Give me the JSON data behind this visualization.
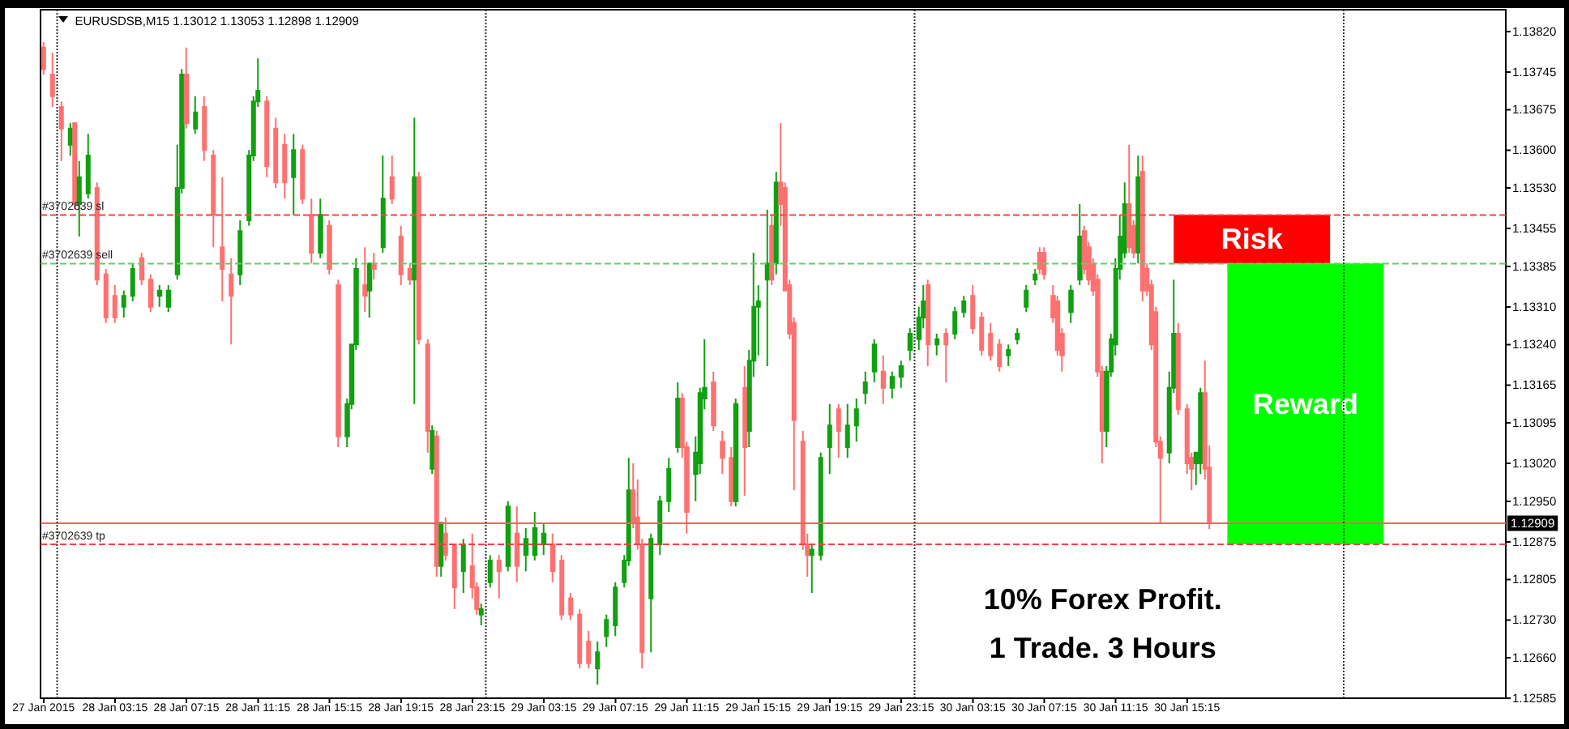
{
  "chart_data": {
    "type": "candlestick",
    "title": "EURUSDSB,M15 1.13012 1.13053 1.12898 1.12909",
    "x": [
      "2015-01-27T23:15",
      "2015-01-27T23:45",
      "2015-01-28T00:15",
      "2015-01-28T00:45",
      "2015-01-28T01:00",
      "2015-01-28T01:15",
      "2015-01-28T01:45",
      "2015-01-28T02:15",
      "2015-01-28T02:45",
      "2015-01-28T03:15",
      "2015-01-28T03:45",
      "2015-01-28T04:15",
      "2015-01-28T04:45",
      "2015-01-28T05:15",
      "2015-01-28T05:45",
      "2015-01-28T06:15",
      "2015-01-28T06:45",
      "2015-01-28T07:00",
      "2015-01-28T07:15",
      "2015-01-28T07:45",
      "2015-01-28T08:15",
      "2015-01-28T08:45",
      "2015-01-28T09:15",
      "2015-01-28T09:45",
      "2015-01-28T10:15",
      "2015-01-28T10:45",
      "2015-01-28T11:00",
      "2015-01-28T11:15",
      "2015-01-28T11:45",
      "2015-01-28T12:15",
      "2015-01-28T12:45",
      "2015-01-28T13:15",
      "2015-01-28T13:45",
      "2015-01-28T14:15",
      "2015-01-28T14:45",
      "2015-01-28T15:15",
      "2015-01-28T15:45",
      "2015-01-28T16:15",
      "2015-01-28T16:30",
      "2015-01-28T16:45",
      "2015-01-28T17:15",
      "2015-01-28T17:30",
      "2015-01-28T17:45",
      "2015-01-28T18:15",
      "2015-01-28T18:45",
      "2015-01-28T19:15",
      "2015-01-28T19:45",
      "2015-01-28T20:00",
      "2015-01-28T20:15",
      "2015-01-28T20:45",
      "2015-01-28T21:00",
      "2015-01-28T21:15",
      "2015-01-28T21:30",
      "2015-01-28T21:45",
      "2015-01-28T22:15",
      "2015-01-28T22:45",
      "2015-01-28T23:15",
      "2015-01-28T23:30",
      "2015-01-28T23:45",
      "2015-01-29T00:15",
      "2015-01-29T00:45",
      "2015-01-29T01:15",
      "2015-01-29T01:45",
      "2015-01-29T02:15",
      "2015-01-29T02:45",
      "2015-01-29T03:15",
      "2015-01-29T03:45",
      "2015-01-29T04:15",
      "2015-01-29T04:45",
      "2015-01-29T05:15",
      "2015-01-29T05:45",
      "2015-01-29T06:15",
      "2015-01-29T06:45",
      "2015-01-29T07:15",
      "2015-01-29T07:45",
      "2015-01-29T08:00",
      "2015-01-29T08:15",
      "2015-01-29T08:30",
      "2015-01-29T08:45",
      "2015-01-29T09:15",
      "2015-01-29T09:45",
      "2015-01-29T10:15",
      "2015-01-29T10:45",
      "2015-01-29T11:00",
      "2015-01-29T11:15",
      "2015-01-29T11:45",
      "2015-01-29T12:00",
      "2015-01-29T12:15",
      "2015-01-29T12:45",
      "2015-01-29T13:15",
      "2015-01-29T13:45",
      "2015-01-29T14:00",
      "2015-01-29T14:30",
      "2015-01-29T14:45",
      "2015-01-29T15:00",
      "2015-01-29T15:15",
      "2015-01-29T15:45",
      "2015-01-29T16:00",
      "2015-01-29T16:15",
      "2015-01-29T16:30",
      "2015-01-29T16:45",
      "2015-01-29T17:00",
      "2015-01-29T17:15",
      "2015-01-29T17:45",
      "2015-01-29T18:00",
      "2015-01-29T18:15",
      "2015-01-29T18:45",
      "2015-01-29T19:15",
      "2015-01-29T19:45",
      "2015-01-29T20:15",
      "2015-01-29T20:45",
      "2015-01-29T21:15",
      "2015-01-29T21:45",
      "2015-01-29T22:15",
      "2015-01-29T22:45",
      "2015-01-29T23:15",
      "2015-01-29T23:45",
      "2015-01-30T00:15",
      "2015-01-30T00:30",
      "2015-01-30T00:45",
      "2015-01-30T01:15",
      "2015-01-30T01:45",
      "2015-01-30T02:15",
      "2015-01-30T02:45",
      "2015-01-30T03:15",
      "2015-01-30T03:45",
      "2015-01-30T04:15",
      "2015-01-30T04:45",
      "2015-01-30T05:15",
      "2015-01-30T05:45",
      "2015-01-30T06:15",
      "2015-01-30T06:45",
      "2015-01-30T07:00",
      "2015-01-30T07:15",
      "2015-01-30T07:45",
      "2015-01-30T08:00",
      "2015-01-30T08:15",
      "2015-01-30T08:45",
      "2015-01-30T09:15",
      "2015-01-30T09:30",
      "2015-01-30T09:45",
      "2015-01-30T10:00",
      "2015-01-30T10:15",
      "2015-01-30T10:30",
      "2015-01-30T10:45",
      "2015-01-30T11:00",
      "2015-01-30T11:15",
      "2015-01-30T11:30",
      "2015-01-30T11:45",
      "2015-01-30T12:00",
      "2015-01-30T12:15",
      "2015-01-30T12:30",
      "2015-01-30T12:45",
      "2015-01-30T13:00",
      "2015-01-30T13:15",
      "2015-01-30T13:30",
      "2015-01-30T13:45",
      "2015-01-30T14:15",
      "2015-01-30T14:30",
      "2015-01-30T14:45",
      "2015-01-30T15:15",
      "2015-01-30T15:30",
      "2015-01-30T15:45",
      "2015-01-30T16:00",
      "2015-01-30T16:15",
      "2015-01-30T16:30"
    ],
    "ohlc": [
      [
        1.1379,
        1.138,
        1.1374,
        1.1375
      ],
      [
        1.1374,
        1.1378,
        1.1368,
        1.137
      ],
      [
        1.1368,
        1.1369,
        1.1358,
        1.1364
      ],
      [
        1.1361,
        1.1365,
        1.1359,
        1.1364
      ],
      [
        1.1365,
        1.1365,
        1.1349,
        1.135
      ],
      [
        1.135,
        1.1358,
        1.1344,
        1.1355
      ],
      [
        1.1352,
        1.1363,
        1.1351,
        1.1359
      ],
      [
        1.1353,
        1.1354,
        1.1335,
        1.1336
      ],
      [
        1.1337,
        1.1338,
        1.1328,
        1.1329
      ],
      [
        1.1333,
        1.1335,
        1.1328,
        1.1329
      ],
      [
        1.1331,
        1.1334,
        1.1329,
        1.1333
      ],
      [
        1.1333,
        1.1339,
        1.1332,
        1.1338
      ],
      [
        1.134,
        1.1341,
        1.1335,
        1.1336
      ],
      [
        1.1336,
        1.1337,
        1.133,
        1.1331
      ],
      [
        1.1333,
        1.1335,
        1.1331,
        1.1334
      ],
      [
        1.1331,
        1.1335,
        1.133,
        1.1334
      ],
      [
        1.1337,
        1.1361,
        1.1336,
        1.1353
      ],
      [
        1.1353,
        1.1375,
        1.1352,
        1.1374
      ],
      [
        1.1374,
        1.1379,
        1.1364,
        1.1365
      ],
      [
        1.1364,
        1.137,
        1.1363,
        1.1367
      ],
      [
        1.1368,
        1.137,
        1.1358,
        1.136
      ],
      [
        1.1359,
        1.136,
        1.1342,
        1.1348
      ],
      [
        1.1342,
        1.1355,
        1.1332,
        1.1338
      ],
      [
        1.1337,
        1.134,
        1.1324,
        1.1333
      ],
      [
        1.1337,
        1.1347,
        1.1335,
        1.1345
      ],
      [
        1.1347,
        1.136,
        1.1346,
        1.1359
      ],
      [
        1.1359,
        1.137,
        1.1358,
        1.1369
      ],
      [
        1.1369,
        1.1377,
        1.1368,
        1.1371
      ],
      [
        1.1369,
        1.137,
        1.1355,
        1.1357
      ],
      [
        1.1364,
        1.1366,
        1.1353,
        1.1354
      ],
      [
        1.1361,
        1.1363,
        1.1351,
        1.1354
      ],
      [
        1.1355,
        1.1363,
        1.1348,
        1.136
      ],
      [
        1.136,
        1.1361,
        1.135,
        1.1351
      ],
      [
        1.1348,
        1.1351,
        1.1339,
        1.1341
      ],
      [
        1.1341,
        1.1351,
        1.134,
        1.1348
      ],
      [
        1.1346,
        1.1347,
        1.1337,
        1.1338
      ],
      [
        1.1335,
        1.1336,
        1.1305,
        1.1307
      ],
      [
        1.1307,
        1.1314,
        1.1305,
        1.1313
      ],
      [
        1.1313,
        1.1324,
        1.1312,
        1.1324
      ],
      [
        1.1324,
        1.134,
        1.1323,
        1.1338
      ],
      [
        1.1335,
        1.1342,
        1.133,
        1.1333
      ],
      [
        1.1334,
        1.1339,
        1.1329,
        1.1339
      ],
      [
        1.1339,
        1.1341,
        1.1336,
        1.1338
      ],
      [
        1.1342,
        1.1359,
        1.1341,
        1.1351
      ],
      [
        1.1355,
        1.1359,
        1.135,
        1.1351
      ],
      [
        1.1344,
        1.1346,
        1.1335,
        1.1337
      ],
      [
        1.1338,
        1.1339,
        1.1335,
        1.1336
      ],
      [
        1.1336,
        1.1366,
        1.1313,
        1.1355
      ],
      [
        1.1355,
        1.1356,
        1.1324,
        1.1325
      ],
      [
        1.1324,
        1.1325,
        1.1304,
        1.1308
      ],
      [
        1.1301,
        1.1309,
        1.13,
        1.1308
      ],
      [
        1.1307,
        1.1308,
        1.1281,
        1.1283
      ],
      [
        1.1283,
        1.1291,
        1.1281,
        1.1291
      ],
      [
        1.1289,
        1.1292,
        1.1284,
        1.1285
      ],
      [
        1.1287,
        1.1287,
        1.1275,
        1.1279
      ],
      [
        1.1282,
        1.1288,
        1.1278,
        1.1287
      ],
      [
        1.1283,
        1.1289,
        1.1277,
        1.1279
      ],
      [
        1.1279,
        1.128,
        1.1274,
        1.1275
      ],
      [
        1.1274,
        1.1276,
        1.1272,
        1.1275
      ],
      [
        1.128,
        1.1285,
        1.1279,
        1.1284
      ],
      [
        1.1284,
        1.1285,
        1.1277,
        1.1282
      ],
      [
        1.1283,
        1.1295,
        1.1282,
        1.1294
      ],
      [
        1.1289,
        1.1294,
        1.128,
        1.1283
      ],
      [
        1.1285,
        1.129,
        1.1282,
        1.1288
      ],
      [
        1.1285,
        1.1293,
        1.1284,
        1.129
      ],
      [
        1.1287,
        1.1291,
        1.1285,
        1.1289
      ],
      [
        1.1287,
        1.1289,
        1.128,
        1.1282
      ],
      [
        1.1284,
        1.1285,
        1.1273,
        1.1274
      ],
      [
        1.1277,
        1.1278,
        1.1273,
        1.1274
      ],
      [
        1.1274,
        1.1275,
        1.1264,
        1.1265
      ],
      [
        1.1269,
        1.1271,
        1.1264,
        1.1265
      ],
      [
        1.1264,
        1.1269,
        1.1261,
        1.1267
      ],
      [
        1.127,
        1.1274,
        1.1268,
        1.1273
      ],
      [
        1.1272,
        1.128,
        1.127,
        1.1279
      ],
      [
        1.128,
        1.1285,
        1.1279,
        1.1284
      ],
      [
        1.1284,
        1.1303,
        1.1283,
        1.1297
      ],
      [
        1.1297,
        1.1302,
        1.129,
        1.1291
      ],
      [
        1.1292,
        1.1299,
        1.1286,
        1.1287
      ],
      [
        1.1287,
        1.1288,
        1.1264,
        1.1267
      ],
      [
        1.1277,
        1.1289,
        1.1267,
        1.1288
      ],
      [
        1.1287,
        1.1296,
        1.1285,
        1.1295
      ],
      [
        1.1295,
        1.1303,
        1.1293,
        1.1301
      ],
      [
        1.1305,
        1.1317,
        1.1304,
        1.1314
      ],
      [
        1.1314,
        1.1315,
        1.1303,
        1.1305
      ],
      [
        1.1305,
        1.1306,
        1.1289,
        1.1293
      ],
      [
        1.13,
        1.1307,
        1.1295,
        1.1304
      ],
      [
        1.1302,
        1.1316,
        1.13,
        1.1315
      ],
      [
        1.1314,
        1.1325,
        1.1312,
        1.1316
      ],
      [
        1.1317,
        1.1319,
        1.1308,
        1.1309
      ],
      [
        1.1306,
        1.1308,
        1.13,
        1.1303
      ],
      [
        1.1303,
        1.1305,
        1.1294,
        1.1295
      ],
      [
        1.1295,
        1.1314,
        1.1294,
        1.1313
      ],
      [
        1.1316,
        1.132,
        1.1296,
        1.1305
      ],
      [
        1.1308,
        1.1323,
        1.1305,
        1.1321
      ],
      [
        1.1321,
        1.1341,
        1.1318,
        1.1331
      ],
      [
        1.1331,
        1.1335,
        1.1322,
        1.1332
      ],
      [
        1.1336,
        1.1349,
        1.132,
        1.1339
      ],
      [
        1.1346,
        1.1348,
        1.1335,
        1.1336
      ],
      [
        1.1339,
        1.1356,
        1.1337,
        1.1354
      ],
      [
        1.1354,
        1.1365,
        1.1346,
        1.135
      ],
      [
        1.1353,
        1.1354,
        1.1334,
        1.1334
      ],
      [
        1.1335,
        1.1336,
        1.1325,
        1.1326
      ],
      [
        1.1328,
        1.1329,
        1.1297,
        1.131
      ],
      [
        1.1306,
        1.1308,
        1.1286,
        1.1287
      ],
      [
        1.1287,
        1.1289,
        1.1281,
        1.1285
      ],
      [
        1.1285,
        1.1287,
        1.1278,
        1.1286
      ],
      [
        1.1285,
        1.1304,
        1.1284,
        1.1303
      ],
      [
        1.1305,
        1.1313,
        1.13,
        1.1309
      ],
      [
        1.1312,
        1.1313,
        1.1303,
        1.1308
      ],
      [
        1.1305,
        1.1313,
        1.1303,
        1.1309
      ],
      [
        1.1309,
        1.1314,
        1.1306,
        1.1312
      ],
      [
        1.1315,
        1.1319,
        1.1313,
        1.1317
      ],
      [
        1.1319,
        1.1325,
        1.1317,
        1.1324
      ],
      [
        1.1319,
        1.1322,
        1.1313,
        1.1316
      ],
      [
        1.1316,
        1.1319,
        1.1314,
        1.1318
      ],
      [
        1.1318,
        1.1321,
        1.1316,
        1.132
      ],
      [
        1.1323,
        1.1327,
        1.1321,
        1.1326
      ],
      [
        1.1325,
        1.1331,
        1.1323,
        1.1329
      ],
      [
        1.1329,
        1.1335,
        1.1327,
        1.1332
      ],
      [
        1.1335,
        1.1336,
        1.132,
        1.1324
      ],
      [
        1.1324,
        1.1326,
        1.1322,
        1.1325
      ],
      [
        1.1326,
        1.1327,
        1.1317,
        1.1324
      ],
      [
        1.1326,
        1.1331,
        1.1325,
        1.133
      ],
      [
        1.133,
        1.1333,
        1.1329,
        1.1332
      ],
      [
        1.1333,
        1.1335,
        1.1326,
        1.1327
      ],
      [
        1.1329,
        1.133,
        1.1322,
        1.1323
      ],
      [
        1.1326,
        1.1328,
        1.1321,
        1.1322
      ],
      [
        1.1324,
        1.1325,
        1.1319,
        1.132
      ],
      [
        1.1322,
        1.1324,
        1.132,
        1.1323
      ],
      [
        1.1325,
        1.1327,
        1.1324,
        1.1326
      ],
      [
        1.1331,
        1.1335,
        1.133,
        1.1334
      ],
      [
        1.1336,
        1.1338,
        1.1335,
        1.1337
      ],
      [
        1.1341,
        1.1342,
        1.1337,
        1.1338
      ],
      [
        1.1341,
        1.1342,
        1.1336,
        1.1337
      ],
      [
        1.1333,
        1.1335,
        1.1328,
        1.1329
      ],
      [
        1.1332,
        1.1333,
        1.1322,
        1.1323
      ],
      [
        1.1326,
        1.1327,
        1.1319,
        1.1322
      ],
      [
        1.133,
        1.1335,
        1.1328,
        1.1334
      ],
      [
        1.1336,
        1.135,
        1.1335,
        1.1344
      ],
      [
        1.1345,
        1.1346,
        1.1337,
        1.1338
      ],
      [
        1.1342,
        1.1343,
        1.1335,
        1.1336
      ],
      [
        1.1339,
        1.134,
        1.1333,
        1.1334
      ],
      [
        1.1336,
        1.1337,
        1.1318,
        1.1319
      ],
      [
        1.1319,
        1.132,
        1.1302,
        1.1308
      ],
      [
        1.1308,
        1.132,
        1.1305,
        1.1319
      ],
      [
        1.1319,
        1.1326,
        1.1318,
        1.1325
      ],
      [
        1.1324,
        1.134,
        1.1322,
        1.1338
      ],
      [
        1.1338,
        1.1348,
        1.1336,
        1.1344
      ],
      [
        1.1341,
        1.1354,
        1.134,
        1.135
      ],
      [
        1.135,
        1.1361,
        1.1341,
        1.1342
      ],
      [
        1.1346,
        1.1347,
        1.134,
        1.1341
      ],
      [
        1.1341,
        1.1359,
        1.1339,
        1.1355
      ],
      [
        1.1356,
        1.1359,
        1.1332,
        1.1334
      ],
      [
        1.1338,
        1.1339,
        1.1333,
        1.1334
      ],
      [
        1.1335,
        1.1336,
        1.1323,
        1.1324
      ],
      [
        1.133,
        1.1331,
        1.1305,
        1.1306
      ],
      [
        1.1306,
        1.1307,
        1.1291,
        1.1303
      ],
      [
        1.1304,
        1.1319,
        1.1302,
        1.1316
      ],
      [
        1.1316,
        1.1336,
        1.1315,
        1.1326
      ],
      [
        1.1326,
        1.1328,
        1.1311,
        1.1312
      ],
      [
        1.1312,
        1.1313,
        1.13,
        1.1302
      ],
      [
        1.1303,
        1.1304,
        1.1297,
        1.1301
      ],
      [
        1.1302,
        1.1304,
        1.1298,
        1.1304
      ],
      [
        1.1302,
        1.1316,
        1.13,
        1.1315
      ],
      [
        1.1315,
        1.1321,
        1.1299,
        1.1301
      ],
      [
        1.13012,
        1.13053,
        1.12898,
        1.12909
      ]
    ],
    "colors": [
      "#ff7070",
      "#ff7070",
      "#ff7070",
      "#10a010",
      "#ff7070",
      "#10a010",
      "#10a010",
      "#ff7070",
      "#ff7070",
      "#ff7070",
      "#10a010",
      "#10a010",
      "#ff7070",
      "#ff7070",
      "#10a010",
      "#10a010",
      "#10a010",
      "#10a010",
      "#ff7070",
      "#10a010",
      "#ff7070",
      "#ff7070",
      "#ff7070",
      "#ff7070",
      "#10a010",
      "#10a010",
      "#10a010",
      "#10a010",
      "#ff7070",
      "#ff7070",
      "#ff7070",
      "#10a010",
      "#ff7070",
      "#ff7070",
      "#10a010",
      "#ff7070",
      "#ff7070",
      "#10a010",
      "#10a010",
      "#10a010",
      "#ff7070",
      "#10a010",
      "#ff7070",
      "#10a010",
      "#ff7070",
      "#ff7070",
      "#ff7070",
      "#10a010",
      "#ff7070",
      "#ff7070",
      "#10a010",
      "#ff7070",
      "#10a010",
      "#ff7070",
      "#ff7070",
      "#10a010",
      "#ff7070",
      "#ff7070",
      "#10a010",
      "#10a010",
      "#ff7070",
      "#10a010",
      "#ff7070",
      "#10a010",
      "#10a010",
      "#10a010",
      "#ff7070",
      "#ff7070",
      "#ff7070",
      "#ff7070",
      "#ff7070",
      "#10a010",
      "#10a010",
      "#10a010",
      "#10a010",
      "#10a010",
      "#ff7070",
      "#ff7070",
      "#ff7070",
      "#10a010",
      "#10a010",
      "#10a010",
      "#10a010",
      "#ff7070",
      "#ff7070",
      "#10a010",
      "#10a010",
      "#10a010",
      "#ff7070",
      "#ff7070",
      "#ff7070",
      "#10a010",
      "#ff7070",
      "#10a010",
      "#10a010",
      "#10a010",
      "#10a010",
      "#ff7070",
      "#10a010",
      "#ff7070",
      "#ff7070",
      "#ff7070",
      "#ff7070",
      "#ff7070",
      "#ff7070",
      "#10a010",
      "#10a010",
      "#10a010",
      "#ff7070",
      "#10a010",
      "#10a010",
      "#10a010",
      "#10a010",
      "#ff7070",
      "#10a010",
      "#10a010",
      "#10a010",
      "#10a010",
      "#10a010",
      "#ff7070",
      "#10a010",
      "#ff7070",
      "#10a010",
      "#10a010",
      "#ff7070",
      "#ff7070",
      "#ff7070",
      "#ff7070",
      "#10a010",
      "#10a010",
      "#10a010",
      "#10a010",
      "#ff7070",
      "#ff7070",
      "#ff7070",
      "#ff7070",
      "#ff7070",
      "#10a010",
      "#10a010",
      "#ff7070",
      "#ff7070",
      "#ff7070",
      "#ff7070",
      "#ff7070",
      "#10a010",
      "#10a010",
      "#10a010",
      "#10a010",
      "#10a010",
      "#ff7070",
      "#ff7070",
      "#10a010",
      "#ff7070",
      "#ff7070",
      "#ff7070",
      "#ff7070",
      "#ff7070",
      "#10a010",
      "#10a010",
      "#ff7070",
      "#ff7070",
      "#ff7070",
      "#10a010",
      "#10a010",
      "#ff7070",
      "#ff7070"
    ],
    "xlim": [
      "2015-01-27T23:05",
      "2015-01-31T09:05"
    ],
    "xticks": [
      {
        "value": "2015-01-27T23:15",
        "label": "27 Jan 2015"
      },
      {
        "value": "2015-01-28T03:15",
        "label": "28 Jan 03:15"
      },
      {
        "value": "2015-01-28T07:15",
        "label": "28 Jan 07:15"
      },
      {
        "value": "2015-01-28T11:15",
        "label": "28 Jan 11:15"
      },
      {
        "value": "2015-01-28T15:15",
        "label": "28 Jan 15:15"
      },
      {
        "value": "2015-01-28T19:15",
        "label": "28 Jan 19:15"
      },
      {
        "value": "2015-01-28T23:15",
        "label": "28 Jan 23:15"
      },
      {
        "value": "2015-01-29T03:15",
        "label": "29 Jan 03:15"
      },
      {
        "value": "2015-01-29T07:15",
        "label": "29 Jan 07:15"
      },
      {
        "value": "2015-01-29T11:15",
        "label": "29 Jan 11:15"
      },
      {
        "value": "2015-01-29T15:15",
        "label": "29 Jan 15:15"
      },
      {
        "value": "2015-01-29T19:15",
        "label": "29 Jan 19:15"
      },
      {
        "value": "2015-01-29T23:15",
        "label": "29 Jan 23:15"
      },
      {
        "value": "2015-01-30T03:15",
        "label": "30 Jan 03:15"
      },
      {
        "value": "2015-01-30T07:15",
        "label": "30 Jan 07:15"
      },
      {
        "value": "2015-01-30T11:15",
        "label": "30 Jan 11:15"
      },
      {
        "value": "2015-01-30T15:15",
        "label": "30 Jan 15:15"
      }
    ],
    "ylim": [
      1.12585,
      1.1386
    ],
    "yticks": [
      {
        "value": 1.1382,
        "label": "1.13820"
      },
      1.13745,
      1.13675,
      {
        "value": 1.136,
        "label": "1.13600"
      },
      {
        "value": 1.1353,
        "label": "1.13530"
      },
      1.13455,
      1.13385,
      {
        "value": 1.1331,
        "label": "1.13310"
      },
      {
        "value": 1.1324,
        "label": "1.13240"
      },
      1.13165,
      1.13095,
      {
        "value": 1.1302,
        "label": "1.13020"
      },
      {
        "value": 1.1295,
        "label": "1.12950"
      },
      1.12875,
      1.12805,
      {
        "value": 1.1273,
        "label": "1.12730"
      },
      {
        "value": 1.1266,
        "label": "1.12660"
      },
      1.12585
    ],
    "ref_lines": [
      {
        "axis": "y",
        "value": 1.1348,
        "label": "#3702639 sl",
        "color": "#ff4040",
        "line_style": "dashed"
      },
      {
        "axis": "y",
        "value": 1.1339,
        "label": "#3702639 sell",
        "color": "#66cc66",
        "line_style": "dashed"
      },
      {
        "axis": "y",
        "value": 1.1287,
        "label": "#3702639 tp",
        "color": "#ff4040",
        "line_style": "dashed"
      },
      {
        "axis": "y",
        "value": 1.12909,
        "label": "1.12909",
        "color": "#ff6060",
        "line_style": "solid"
      },
      {
        "axis": "x",
        "value": "2015-01-28T00:00",
        "color": "#333333",
        "line_style": "dotted"
      },
      {
        "axis": "x",
        "value": "2015-01-29T00:00",
        "color": "#333333",
        "line_style": "dotted"
      },
      {
        "axis": "x",
        "value": "2015-01-30T00:00",
        "color": "#333333",
        "line_style": "dotted"
      },
      {
        "axis": "x",
        "value": "2015-01-31T00:00",
        "color": "#333333",
        "line_style": "dotted"
      }
    ],
    "bands": [
      {
        "axis": "y",
        "from": 1.1339,
        "to": 1.1348,
        "label": "Risk",
        "color": "#ff0000"
      },
      {
        "axis": "y",
        "from": 1.1287,
        "to": 1.1339,
        "label": "Reward",
        "color": "#00ff00"
      }
    ],
    "annotations": [
      "10% Forex Profit.",
      "1 Trade. 3 Hours"
    ]
  }
}
